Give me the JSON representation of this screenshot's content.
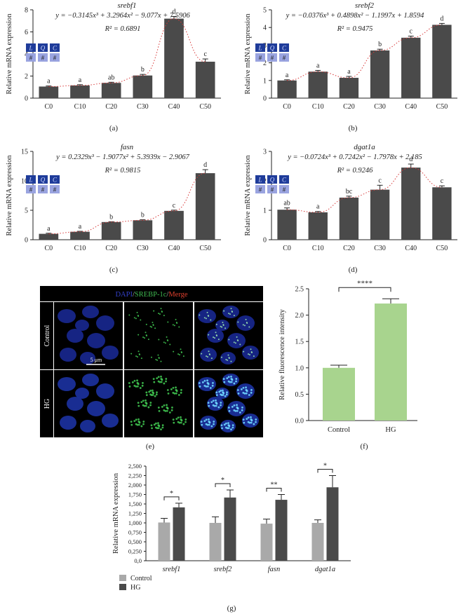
{
  "chart_data": [
    {
      "panel": "(a)",
      "type": "bar",
      "title": "srebf1",
      "equation": "y = −0.3145x³ + 3.2964x² − 9.077x + 7.5906",
      "r2": "R² = 0.6891",
      "ylabel": "Relative mRNA expression",
      "ylim": [
        0,
        8
      ],
      "yticks": [
        0,
        2,
        4,
        6,
        8
      ],
      "categories": [
        "C0",
        "C10",
        "C20",
        "C30",
        "C40",
        "C50"
      ],
      "values": [
        1.05,
        1.15,
        1.38,
        2.05,
        7.2,
        3.3
      ],
      "errors": [
        0.05,
        0.07,
        0.06,
        0.1,
        0.2,
        0.25
      ],
      "letters": [
        "a",
        "a",
        "ab",
        "b",
        "d",
        "c"
      ],
      "legend_boxes": [
        "L",
        "Q",
        "C"
      ],
      "legend_marks": [
        "#",
        "#",
        "#"
      ]
    },
    {
      "panel": "(b)",
      "type": "bar",
      "title": "srebf2",
      "equation": "y = −0.0376x³ + 0.4898x² − 1.1997x + 1.8594",
      "r2": "R² = 0.9475",
      "ylabel": "Relative mRNA expression",
      "ylim": [
        0,
        5
      ],
      "yticks": [
        0,
        1,
        2,
        3,
        4,
        5
      ],
      "categories": [
        "C0",
        "C10",
        "C20",
        "C30",
        "C40",
        "C50"
      ],
      "values": [
        1.0,
        1.5,
        1.15,
        2.7,
        3.42,
        4.15
      ],
      "errors": [
        0.04,
        0.07,
        0.08,
        0.07,
        0.09,
        0.08
      ],
      "letters": [
        "a",
        "a",
        "a",
        "b",
        "c",
        "d"
      ],
      "legend_boxes": [
        "L",
        "Q",
        "C"
      ],
      "legend_marks": [
        "#",
        "#",
        "#"
      ]
    },
    {
      "panel": "(c)",
      "type": "bar",
      "title": "fasn",
      "equation": "y = 0.2329x³ − 1.9077x² + 5.3939x − 2.9067",
      "r2": "R² = 0.9815",
      "ylabel": "Relative mRNA expression",
      "ylim": [
        0,
        15
      ],
      "yticks": [
        0,
        5,
        10,
        15
      ],
      "categories": [
        "C0",
        "C10",
        "C20",
        "C30",
        "C40",
        "C50"
      ],
      "values": [
        1.0,
        1.35,
        3.0,
        3.3,
        4.9,
        11.3
      ],
      "errors": [
        0.1,
        0.08,
        0.06,
        0.1,
        0.12,
        0.6
      ],
      "letters": [
        "a",
        "a",
        "b",
        "b",
        "c",
        "d"
      ],
      "legend_boxes": [
        "L",
        "Q",
        "C"
      ],
      "legend_marks": [
        "#",
        "#",
        "#"
      ]
    },
    {
      "panel": "(d)",
      "type": "bar",
      "title": "dgat1a",
      "equation": "y = −0.0724x³ + 0.7242x² − 1.7978x + 2.185",
      "r2": "R² = 0.9246",
      "ylabel": "Relative mRNA expression",
      "ylim": [
        0,
        3
      ],
      "yticks": [
        0,
        1,
        2,
        3
      ],
      "categories": [
        "C0",
        "C10",
        "C20",
        "C30",
        "C40",
        "C50"
      ],
      "values": [
        1.02,
        0.93,
        1.43,
        1.7,
        2.45,
        1.78
      ],
      "errors": [
        0.06,
        0.03,
        0.05,
        0.15,
        0.12,
        0.05
      ],
      "letters": [
        "ab",
        "a",
        "bc",
        "c",
        "d",
        "c"
      ],
      "legend_boxes": [
        "L",
        "Q",
        "C"
      ],
      "legend_marks": [
        "#",
        "#",
        "#"
      ]
    },
    {
      "panel": "(f)",
      "type": "bar",
      "ylabel": "Relative fluorescence intensity",
      "ylim": [
        0,
        2.5
      ],
      "yticks": [
        "0.0",
        "0.5",
        "1.0",
        "1.5",
        "2.0",
        "2.5"
      ],
      "categories": [
        "Control",
        "HG"
      ],
      "values": [
        1.0,
        2.22
      ],
      "errors": [
        0.05,
        0.09
      ],
      "significance": "****",
      "color": "#a8d48e"
    },
    {
      "panel": "(g)",
      "type": "bar",
      "ylabel": "Relative mRNA expression",
      "ylim": [
        0,
        2.5
      ],
      "yticks": [
        "0,0",
        "0,250",
        "0,500",
        "0,750",
        "1,000",
        "1,250",
        "1,500",
        "1,750",
        "2,000",
        "2,250",
        "2,500"
      ],
      "categories": [
        "srebf1",
        "srebf2",
        "fasn",
        "dgat1a"
      ],
      "series": [
        {
          "name": "Control",
          "values": [
            1.01,
            1.0,
            0.98,
            1.0
          ],
          "errors": [
            0.11,
            0.16,
            0.12,
            0.08
          ],
          "color": "#a9a9a9"
        },
        {
          "name": "HG",
          "values": [
            1.41,
            1.67,
            1.61,
            1.94
          ],
          "errors": [
            0.11,
            0.2,
            0.14,
            0.31
          ],
          "color": "#4a4a4a"
        }
      ],
      "significance": [
        "*",
        "*",
        "**",
        "*"
      ],
      "legend_placement": "bottom-left"
    }
  ],
  "microscopy": {
    "panel": "(e)",
    "header_parts": [
      "DAPI",
      "/",
      "SREBP-1c",
      "/",
      "Merge"
    ],
    "header_colors": [
      "#3340c8",
      "#bbbbbb",
      "#3fb950",
      "#bbbbbb",
      "#e0402e"
    ],
    "rows": [
      "Control",
      "HG"
    ],
    "scale_bar": "5 μm"
  },
  "colors": {
    "bar": "#4a4a4a",
    "trend": "#d83a3a"
  }
}
